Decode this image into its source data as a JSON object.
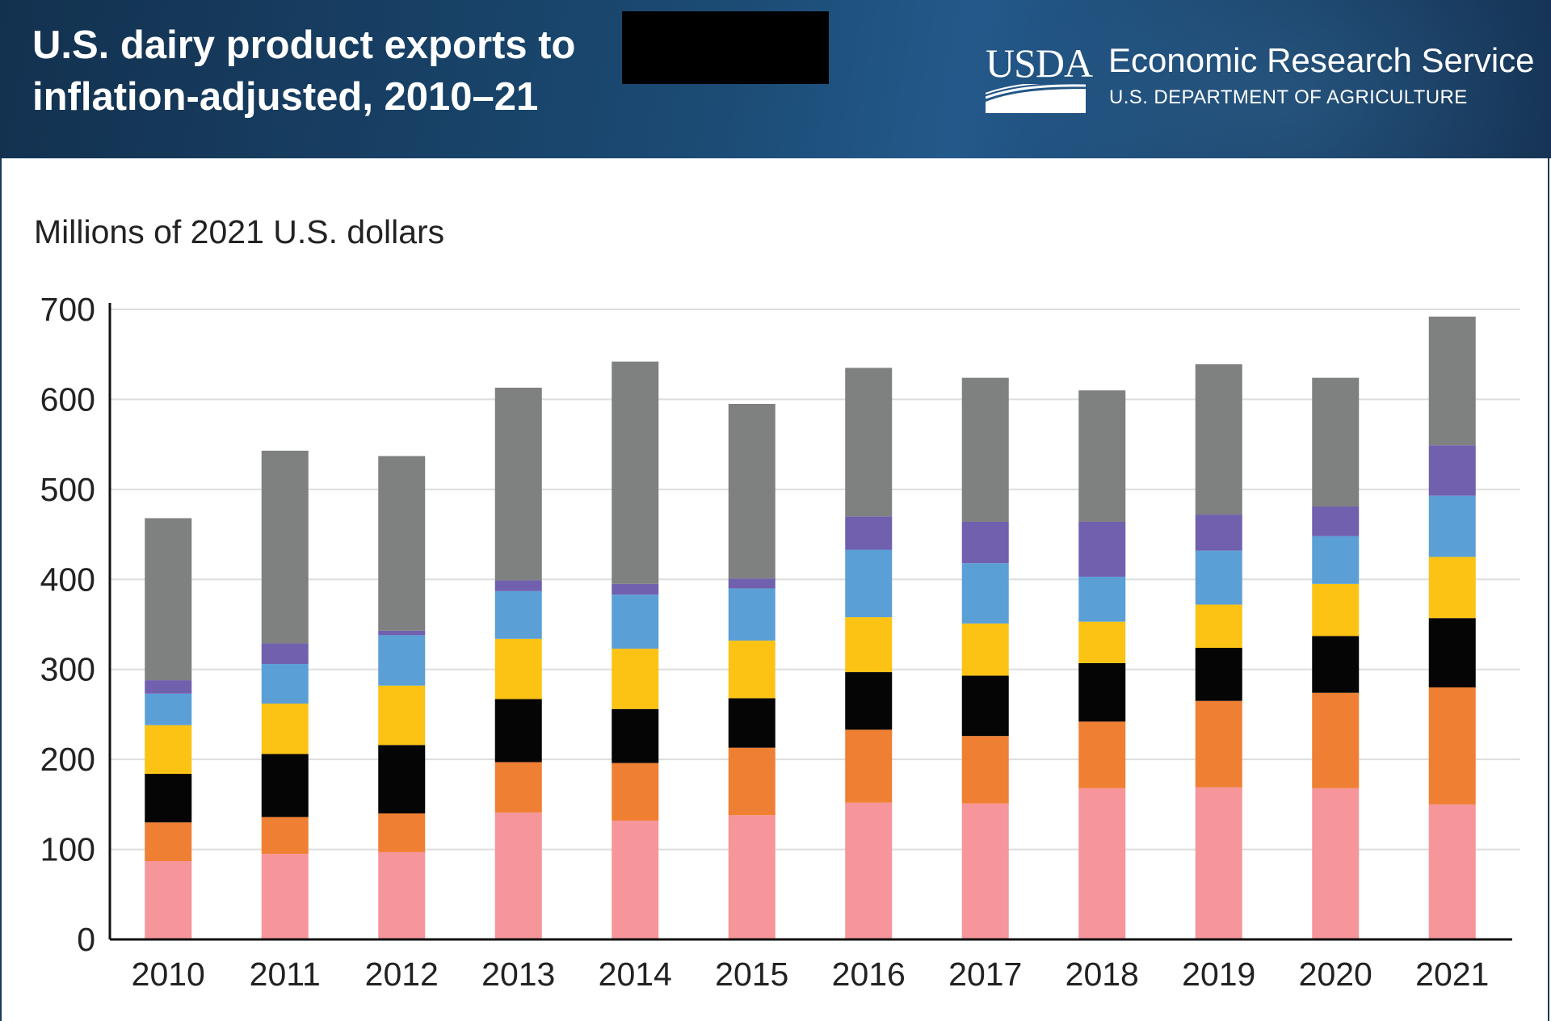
{
  "header": {
    "title_line1": "U.S. dairy product exports to",
    "title_line2": "inflation-adjusted, 2010–21",
    "logo_text": "USDA",
    "agency": "Economic Research Service",
    "department": "U.S. DEPARTMENT OF AGRICULTURE"
  },
  "colors": {
    "header_bg": "#1b4a73",
    "grid": "#dddddd",
    "axis": "#111111"
  },
  "chart_data": {
    "type": "bar",
    "stacked": true,
    "title": "U.S. dairy product exports to [redacted], inflation-adjusted, 2010–21",
    "ylabel": "Millions of 2021 U.S. dollars",
    "xlabel": "",
    "ylim": [
      0,
      700
    ],
    "yticks": [
      "0",
      "100",
      "200",
      "300",
      "400",
      "500",
      "600",
      "700"
    ],
    "grid": true,
    "categories": [
      "2010",
      "2011",
      "2012",
      "2013",
      "2014",
      "2015",
      "2016",
      "2017",
      "2018",
      "2019",
      "2020",
      "2021"
    ],
    "series": [
      {
        "color": "#f6959a",
        "values": [
          87,
          95,
          97,
          141,
          132,
          138,
          152,
          151,
          168,
          169,
          168,
          150
        ]
      },
      {
        "color": "#ef7f33",
        "values": [
          43,
          41,
          43,
          56,
          64,
          75,
          81,
          75,
          74,
          96,
          106,
          130
        ]
      },
      {
        "color": "#050505",
        "values": [
          54,
          70,
          76,
          70,
          60,
          55,
          64,
          67,
          65,
          59,
          63,
          77
        ]
      },
      {
        "color": "#fcc314",
        "values": [
          54,
          56,
          66,
          67,
          67,
          64,
          61,
          58,
          46,
          48,
          58,
          68
        ]
      },
      {
        "color": "#5b9fd7",
        "values": [
          35,
          44,
          56,
          53,
          60,
          58,
          75,
          67,
          50,
          60,
          53,
          68
        ]
      },
      {
        "color": "#7060ad",
        "values": [
          15,
          23,
          5,
          12,
          12,
          11,
          37,
          46,
          61,
          40,
          33,
          56
        ]
      },
      {
        "color": "#7f8080",
        "values": [
          180,
          214,
          194,
          214,
          247,
          194,
          165,
          160,
          146,
          167,
          143,
          143
        ]
      }
    ]
  }
}
